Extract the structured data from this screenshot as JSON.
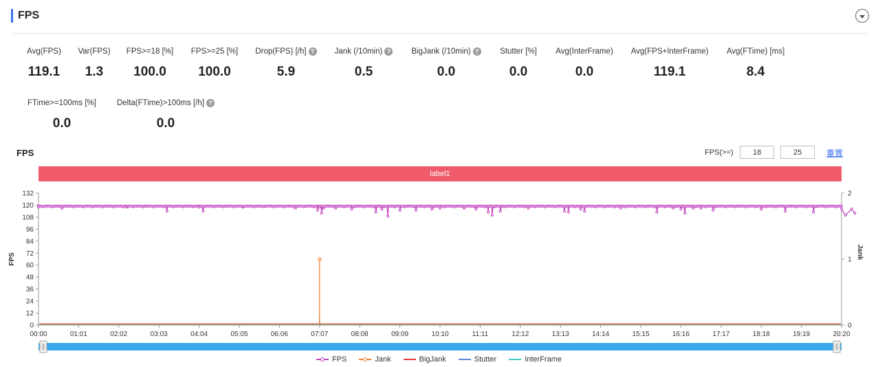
{
  "header": {
    "title": "FPS"
  },
  "metrics_row1": [
    {
      "label": "Avg(FPS)",
      "value": "119.1",
      "help": false
    },
    {
      "label": "Var(FPS)",
      "value": "1.3",
      "help": false
    },
    {
      "label": "FPS>=18 [%]",
      "value": "100.0",
      "help": false
    },
    {
      "label": "FPS>=25 [%]",
      "value": "100.0",
      "help": false
    },
    {
      "label": "Drop(FPS) [/h]",
      "value": "5.9",
      "help": true
    },
    {
      "label": "Jank (/10min)",
      "value": "0.5",
      "help": true
    },
    {
      "label": "BigJank (/10min)",
      "value": "0.0",
      "help": true
    },
    {
      "label": "Stutter [%]",
      "value": "0.0",
      "help": false
    },
    {
      "label": "Avg(InterFrame)",
      "value": "0.0",
      "help": false
    },
    {
      "label": "Avg(FPS+InterFrame)",
      "value": "119.1",
      "help": false
    },
    {
      "label": "Avg(FTime) [ms]",
      "value": "8.4",
      "help": false
    }
  ],
  "metrics_row2": [
    {
      "label": "FTime>=100ms [%]",
      "value": "0.0",
      "help": false
    },
    {
      "label": "Delta(FTime)>100ms [/h]",
      "value": "0.0",
      "help": true
    }
  ],
  "controls": {
    "chart_title": "FPS",
    "threshold_label": "FPS(>=)",
    "threshold1": "18",
    "threshold2": "25",
    "reset_label": "重置"
  },
  "chart_data": {
    "type": "line",
    "label_band": "label1",
    "x_ticks": [
      "00:00",
      "01:01",
      "02:02",
      "03:03",
      "04:04",
      "05:05",
      "06:06",
      "07:07",
      "08:08",
      "09:09",
      "10:10",
      "11:11",
      "12:12",
      "13:13",
      "14:14",
      "15:15",
      "16:16",
      "17:17",
      "18:18",
      "19:19",
      "20:20"
    ],
    "y_left": {
      "label": "FPS",
      "min": 0,
      "max": 132,
      "ticks": [
        0,
        12,
        24,
        36,
        48,
        60,
        72,
        84,
        96,
        108,
        120,
        132
      ]
    },
    "y_right": {
      "label": "Jank",
      "min": 0,
      "max": 2,
      "ticks": [
        0,
        1,
        2
      ]
    },
    "fps": {
      "baseline": 119,
      "dips": [
        {
          "t": 0.0,
          "v": 118
        },
        {
          "t": 0.58,
          "v": 117
        },
        {
          "t": 2.2,
          "v": 118
        },
        {
          "t": 3.2,
          "v": 114
        },
        {
          "t": 4.0,
          "v": 118
        },
        {
          "t": 4.1,
          "v": 114
        },
        {
          "t": 5.1,
          "v": 118
        },
        {
          "t": 6.4,
          "v": 117
        },
        {
          "t": 6.95,
          "v": 115
        },
        {
          "t": 7.0,
          "v": 118
        },
        {
          "t": 7.05,
          "v": 112
        },
        {
          "t": 7.1,
          "v": 117
        },
        {
          "t": 7.4,
          "v": 117
        },
        {
          "t": 7.8,
          "v": 116
        },
        {
          "t": 8.4,
          "v": 113
        },
        {
          "t": 8.55,
          "v": 116
        },
        {
          "t": 8.7,
          "v": 109
        },
        {
          "t": 9.0,
          "v": 115
        },
        {
          "t": 9.4,
          "v": 115
        },
        {
          "t": 9.8,
          "v": 116
        },
        {
          "t": 10.0,
          "v": 117
        },
        {
          "t": 10.6,
          "v": 117
        },
        {
          "t": 10.9,
          "v": 116
        },
        {
          "t": 11.2,
          "v": 113
        },
        {
          "t": 11.3,
          "v": 110
        },
        {
          "t": 11.5,
          "v": 114
        },
        {
          "t": 12.2,
          "v": 117
        },
        {
          "t": 13.1,
          "v": 114
        },
        {
          "t": 13.2,
          "v": 113
        },
        {
          "t": 13.5,
          "v": 116
        },
        {
          "t": 13.6,
          "v": 114
        },
        {
          "t": 14.5,
          "v": 117
        },
        {
          "t": 15.4,
          "v": 113
        },
        {
          "t": 15.8,
          "v": 117
        },
        {
          "t": 16.0,
          "v": 116
        },
        {
          "t": 16.1,
          "v": 112
        },
        {
          "t": 16.3,
          "v": 117
        },
        {
          "t": 16.5,
          "v": 117
        },
        {
          "t": 16.8,
          "v": 115
        },
        {
          "t": 18.0,
          "v": 116
        },
        {
          "t": 18.6,
          "v": 114
        },
        {
          "t": 19.3,
          "v": 113
        },
        {
          "t": 20.0,
          "v": 116
        },
        {
          "t": 20.1,
          "v": 110
        },
        {
          "t": 20.25,
          "v": 116
        },
        {
          "t": 20.33,
          "v": 112
        }
      ]
    },
    "jank": [
      {
        "x": "07:07",
        "value": 1
      }
    ],
    "bigjank": [],
    "stutter": [
      {
        "x": "07:07",
        "value": 0.12
      }
    ],
    "interframe": [],
    "legend": [
      {
        "name": "FPS",
        "color": "#c13fbf",
        "marker": true
      },
      {
        "name": "Jank",
        "color": "#f07d2d",
        "marker": true
      },
      {
        "name": "BigJank",
        "color": "#e23b3b",
        "marker": false
      },
      {
        "name": "Stutter",
        "color": "#5a86e0",
        "marker": false
      },
      {
        "name": "InterFrame",
        "color": "#3fc9c4",
        "marker": false
      }
    ]
  }
}
